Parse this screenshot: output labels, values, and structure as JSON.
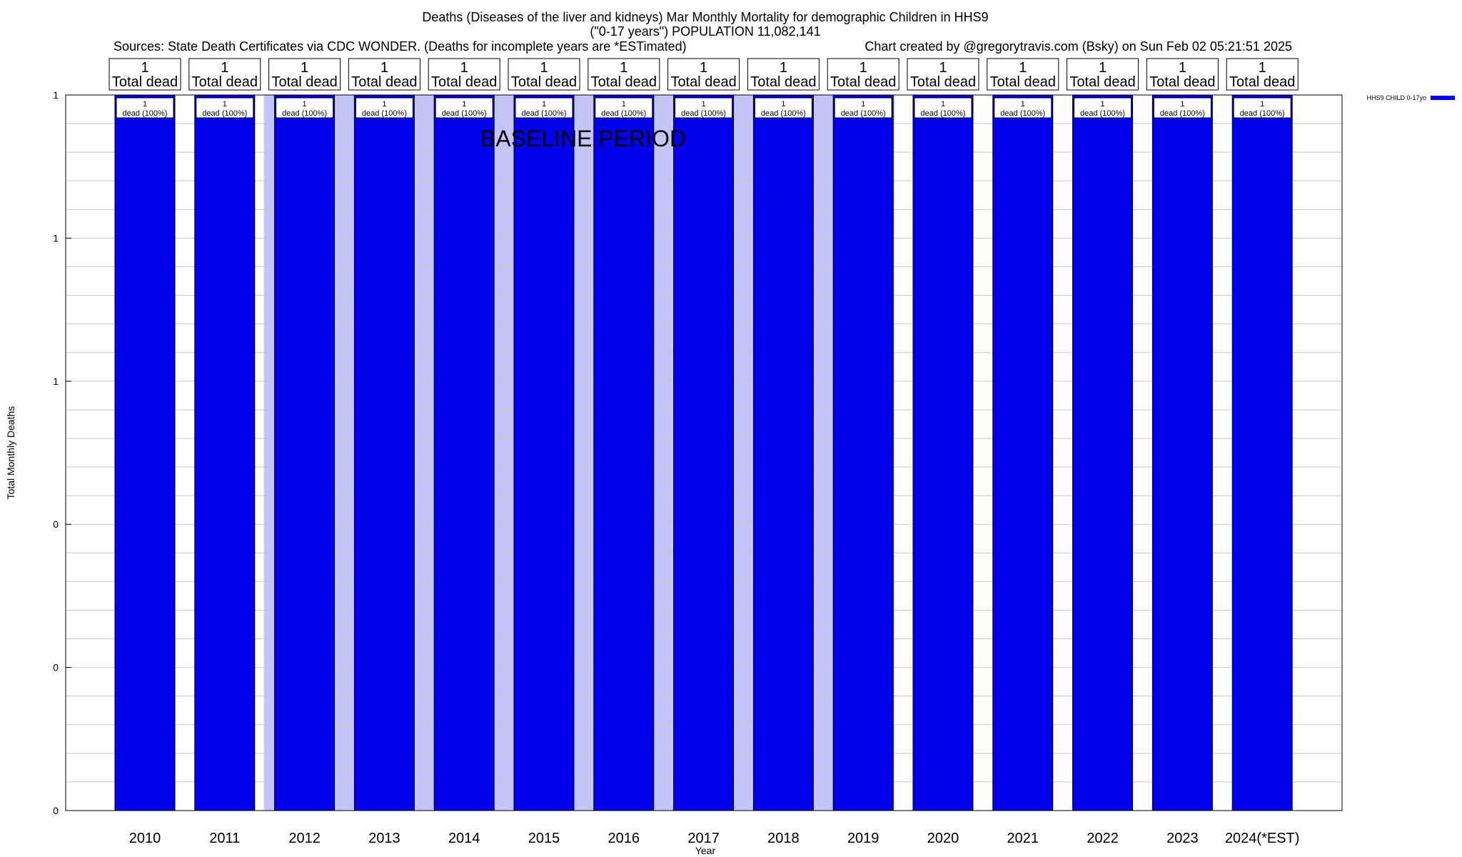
{
  "chart_data": {
    "type": "bar",
    "title": "Deaths (Diseases of the liver and kidneys) Mar Monthly Mortality for demographic Children in HHS9",
    "subtitle": "(\"0-17 years\") POPULATION 11,082,141",
    "source_left": "Sources: State Death Certificates via CDC WONDER. (Deaths for incomplete years are *ESTimated)",
    "source_right": "Chart created by @gregorytravis.com (Bsky) on Sun Feb 02 05:21:51 2025",
    "xlabel": "Year",
    "ylabel": "Total Monthly Deaths",
    "ylim": [
      0,
      1
    ],
    "y_tick_labels": [
      "0",
      "0",
      "0",
      "1",
      "1",
      "1"
    ],
    "grid": true,
    "categories": [
      "2010",
      "2011",
      "2012",
      "2013",
      "2014",
      "2015",
      "2016",
      "2017",
      "2018",
      "2019",
      "2020",
      "2021",
      "2022",
      "2023",
      "2024(*EST)"
    ],
    "series": [
      {
        "name": "HHS9 CHILD 0-17yo",
        "color": "#0000ee",
        "values": [
          1,
          1,
          1,
          1,
          1,
          1,
          1,
          1,
          1,
          1,
          1,
          1,
          1,
          1,
          1
        ]
      }
    ],
    "totals_top": [
      "1",
      "1",
      "1",
      "1",
      "1",
      "1",
      "1",
      "1",
      "1",
      "1",
      "1",
      "1",
      "1",
      "1",
      "1"
    ],
    "total_label": "Total dead",
    "bar_value_labels": [
      "1",
      "1",
      "1",
      "1",
      "1",
      "1",
      "1",
      "1",
      "1",
      "1",
      "1",
      "1",
      "1",
      "1",
      "1"
    ],
    "bar_pct_labels": [
      "dead (100%)",
      "dead (100%)",
      "dead (100%)",
      "dead (100%)",
      "dead (100%)",
      "dead (100%)",
      "dead (100%)",
      "dead (100%)",
      "dead (100%)",
      "dead (100%)",
      "dead (100%)",
      "dead (100%)",
      "dead (100%)",
      "dead (100%)",
      "dead (100%)"
    ],
    "baseline_period": {
      "label": "BASELINE PERIOD",
      "from": "2012",
      "to": "2019",
      "color": "#c4c4f8"
    },
    "legend_position": "top-right"
  }
}
